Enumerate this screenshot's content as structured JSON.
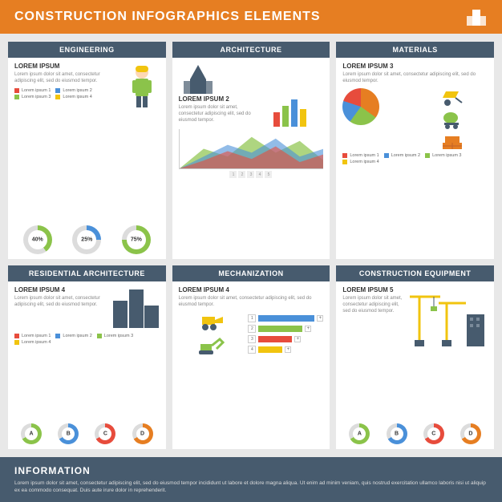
{
  "header": {
    "title": "CONSTRUCTION INFOGRAPHICS ELEMENTS"
  },
  "colors": {
    "orange": "#e67e22",
    "blue": "#4a90d9",
    "green": "#8bc34a",
    "red": "#e74c3c",
    "yellow": "#f1c40f",
    "dark": "#475b6e",
    "grey": "#dcdcdc",
    "bg": "#e8e8e8"
  },
  "lorem_short": "Lorem ipsum dolor sit amet, consectetur adipiscing elit, sed do eiusmod tempor.",
  "legend_labels": [
    "Lorem ipsum 1",
    "Lorem ipsum 2",
    "Lorem ipsum 3",
    "Lorem ipsum 4"
  ],
  "cards": {
    "engineering": {
      "head": "ENGINEERING",
      "title": "LOREM IPSUM",
      "legend_colors": [
        "#e74c3c",
        "#4a90d9",
        "#8bc34a",
        "#f1c40f"
      ],
      "donuts": [
        {
          "pct": 40,
          "color": "#8bc34a"
        },
        {
          "pct": 25,
          "color": "#4a90d9"
        },
        {
          "pct": 75,
          "color": "#8bc34a"
        }
      ]
    },
    "architecture": {
      "head": "ARCHITECTURE",
      "title": "LOREM IPSUM 2",
      "area_colors": [
        "#8bc34a",
        "#4a90d9",
        "#e74c3c"
      ],
      "bars": [
        {
          "h": 18,
          "c": "#e74c3c"
        },
        {
          "h": 26,
          "c": "#8bc34a"
        },
        {
          "h": 34,
          "c": "#4a90d9"
        },
        {
          "h": 22,
          "c": "#f1c40f"
        }
      ],
      "xnums": [
        1,
        2,
        3,
        4,
        5
      ]
    },
    "materials": {
      "head": "MATERIALS",
      "title": "LOREM IPSUM 3",
      "pie_segments": [
        {
          "pct": 35,
          "c": "#e67e22"
        },
        {
          "pct": 25,
          "c": "#8bc34a"
        },
        {
          "pct": 20,
          "c": "#4a90d9"
        },
        {
          "pct": 20,
          "c": "#e74c3c"
        }
      ],
      "legend_colors": [
        "#e74c3c",
        "#4a90d9",
        "#8bc34a",
        "#f1c40f"
      ]
    },
    "residential": {
      "head": "RESIDENTIAL ARCHITECTURE",
      "title": "LOREM IPSUM 4",
      "buildings": [
        34,
        48,
        28
      ],
      "legend_colors": [
        "#e74c3c",
        "#4a90d9",
        "#8bc34a",
        "#f1c40f"
      ],
      "abcd": [
        {
          "l": "A",
          "c": "#8bc34a"
        },
        {
          "l": "B",
          "c": "#4a90d9"
        },
        {
          "l": "C",
          "c": "#e74c3c"
        },
        {
          "l": "D",
          "c": "#e67e22"
        }
      ]
    },
    "mechanization": {
      "head": "MECHANIZATION",
      "title": "LOREM IPSUM 4",
      "hbars": [
        {
          "n": 1,
          "w": 70,
          "c": "#4a90d9"
        },
        {
          "n": 2,
          "w": 55,
          "c": "#8bc34a"
        },
        {
          "n": 3,
          "w": 42,
          "c": "#e74c3c"
        },
        {
          "n": 4,
          "w": 30,
          "c": "#f1c40f"
        }
      ]
    },
    "equipment": {
      "head": "CONSTRUCTION EQUIPMENT",
      "title": "LOREM IPSUM 5",
      "abcd": [
        {
          "l": "A",
          "c": "#8bc34a"
        },
        {
          "l": "B",
          "c": "#4a90d9"
        },
        {
          "l": "C",
          "c": "#e74c3c"
        },
        {
          "l": "D",
          "c": "#e67e22"
        }
      ]
    }
  },
  "footer": {
    "title": "INFORMATION",
    "text": "Lorem ipsum dolor sit amet, consectetur adipiscing elit, sed do eiusmod tempor incididunt ut labore et dolore magna aliqua. Ut enim ad minim veniam, quis nostrud exercitation ullamco laboris nisi ut aliquip ex ea commodo consequat. Duis aute irure dolor in reprehenderit."
  }
}
